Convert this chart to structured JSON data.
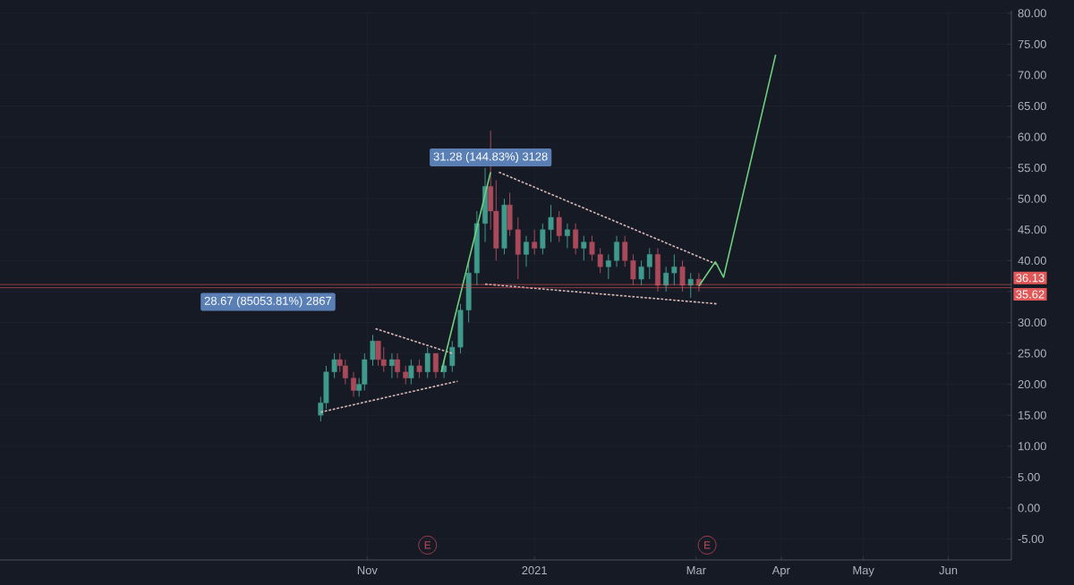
{
  "chart_data": {
    "type": "candlestick",
    "x": [
      "2020-10-15",
      "2020-10-17",
      "2020-10-20",
      "2020-10-22",
      "2020-10-24",
      "2020-10-27",
      "2020-10-29",
      "2020-10-31",
      "2020-11-03",
      "2020-11-05",
      "2020-11-07",
      "2020-11-10",
      "2020-11-12",
      "2020-11-15",
      "2020-11-17",
      "2020-11-20",
      "2020-11-23",
      "2020-11-26",
      "2020-11-29",
      "2020-12-02",
      "2020-12-05",
      "2020-12-08",
      "2020-12-11",
      "2020-12-14",
      "2020-12-16",
      "2020-12-18",
      "2020-12-21",
      "2020-12-23",
      "2020-12-26",
      "2020-12-29",
      "2021-01-01",
      "2021-01-04",
      "2021-01-07",
      "2021-01-10",
      "2021-01-13",
      "2021-01-16",
      "2021-01-19",
      "2021-01-22",
      "2021-01-25",
      "2021-01-28",
      "2021-01-31",
      "2021-02-03",
      "2021-02-06",
      "2021-02-09",
      "2021-02-12",
      "2021-02-15",
      "2021-02-18",
      "2021-02-21",
      "2021-02-24",
      "2021-02-27",
      "2021-03-02"
    ],
    "ohlc": [
      [
        15,
        18,
        14,
        17
      ],
      [
        17,
        23,
        16,
        22
      ],
      [
        22,
        25,
        21,
        24
      ],
      [
        24,
        25,
        22,
        23
      ],
      [
        23,
        24,
        20,
        21
      ],
      [
        21,
        22,
        18,
        19
      ],
      [
        19,
        21,
        18,
        20
      ],
      [
        20,
        25,
        19,
        24
      ],
      [
        24,
        28,
        23,
        27
      ],
      [
        27,
        27,
        23,
        24
      ],
      [
        24,
        26,
        22,
        23
      ],
      [
        23,
        25,
        21,
        24
      ],
      [
        24,
        25,
        21,
        22
      ],
      [
        22,
        23,
        20,
        21
      ],
      [
        21,
        24,
        20,
        23
      ],
      [
        23,
        24,
        21,
        22
      ],
      [
        22,
        26,
        21,
        25
      ],
      [
        25,
        25,
        21,
        22
      ],
      [
        22,
        24,
        21,
        23
      ],
      [
        23,
        27,
        22,
        26
      ],
      [
        26,
        33,
        25,
        32
      ],
      [
        32,
        40,
        30,
        38
      ],
      [
        38,
        48,
        36,
        46
      ],
      [
        46,
        55,
        43,
        52
      ],
      [
        52,
        61,
        45,
        48
      ],
      [
        48,
        53,
        40,
        42
      ],
      [
        42,
        50,
        41,
        49
      ],
      [
        49,
        51,
        44,
        45
      ],
      [
        45,
        47,
        37,
        41
      ],
      [
        41,
        44,
        39,
        43
      ],
      [
        43,
        45,
        41,
        42
      ],
      [
        42,
        46,
        41,
        45
      ],
      [
        45,
        49,
        43,
        47
      ],
      [
        47,
        48,
        43,
        44
      ],
      [
        44,
        46,
        42,
        45
      ],
      [
        45,
        46,
        41,
        42
      ],
      [
        42,
        44,
        40,
        43
      ],
      [
        43,
        44,
        40,
        41
      ],
      [
        41,
        42,
        38,
        39
      ],
      [
        39,
        41,
        37,
        40
      ],
      [
        40,
        44,
        39,
        43
      ],
      [
        43,
        44,
        39,
        40
      ],
      [
        40,
        41,
        36,
        37
      ],
      [
        37,
        40,
        36,
        39
      ],
      [
        39,
        42,
        37,
        41
      ],
      [
        41,
        42,
        35,
        36
      ],
      [
        36,
        39,
        35,
        38
      ],
      [
        38,
        41,
        36,
        39
      ],
      [
        39,
        40,
        35,
        36
      ],
      [
        36,
        38,
        34,
        37
      ],
      [
        37,
        38,
        35,
        36
      ]
    ],
    "colors": [
      "#3f9a8c",
      "#3f9a8c",
      "#3f9a8c",
      "#a84a5a",
      "#a84a5a",
      "#a84a5a",
      "#3f9a8c",
      "#3f9a8c",
      "#3f9a8c",
      "#a84a5a",
      "#a84a5a",
      "#3f9a8c",
      "#a84a5a",
      "#a84a5a",
      "#3f9a8c",
      "#a84a5a",
      "#3f9a8c",
      "#a84a5a",
      "#3f9a8c",
      "#3f9a8c",
      "#3f9a8c",
      "#3f9a8c",
      "#3f9a8c",
      "#3f9a8c",
      "#a84a5a",
      "#a84a5a",
      "#3f9a8c",
      "#a84a5a",
      "#a84a5a",
      "#3f9a8c",
      "#a84a5a",
      "#3f9a8c",
      "#3f9a8c",
      "#a84a5a",
      "#3f9a8c",
      "#a84a5a",
      "#3f9a8c",
      "#a84a5a",
      "#a84a5a",
      "#3f9a8c",
      "#3f9a8c",
      "#a84a5a",
      "#a84a5a",
      "#3f9a8c",
      "#3f9a8c",
      "#a84a5a",
      "#3f9a8c",
      "#3f9a8c",
      "#a84a5a",
      "#3f9a8c",
      "#a84a5a"
    ],
    "series": [
      {
        "type": "line",
        "x": [
          "2020-10-15",
          "2020-12-04"
        ],
        "values": [
          15.5,
          20.5
        ],
        "color": "#d8b8b8",
        "line_style": "dotted"
      },
      {
        "type": "line",
        "x": [
          "2020-11-04",
          "2020-12-02"
        ],
        "values": [
          29,
          25
        ],
        "color": "#d8b8b8",
        "line_style": "dotted"
      },
      {
        "type": "line",
        "x": [
          "2020-12-19",
          "2021-03-09"
        ],
        "values": [
          54.3,
          39.3
        ],
        "color": "#d8b8b8",
        "line_style": "dotted"
      },
      {
        "type": "line",
        "x": [
          "2020-12-14",
          "2021-03-09"
        ],
        "values": [
          36.2,
          33
        ],
        "color": "#d8b8b8",
        "line_style": "dotted"
      },
      {
        "type": "line",
        "x": [
          "2020-11-28",
          "2020-12-16"
        ],
        "values": [
          22,
          54.3
        ],
        "color": "#6fcf7f",
        "line_style": "solid"
      },
      {
        "type": "line",
        "x": [
          "2021-03-02",
          "2021-03-08",
          "2021-03-11",
          "2021-03-30"
        ],
        "values": [
          35.9,
          39.8,
          37.3,
          73.3
        ],
        "color": "#6fcf7f",
        "line_style": "solid"
      }
    ],
    "ref_lines": [
      {
        "axis": "y",
        "value": 36.13,
        "label": "36.13",
        "color": "#e05858"
      },
      {
        "axis": "y",
        "value": 35.62,
        "label": "35.62",
        "color": "#e05858"
      }
    ],
    "annotations": [
      "28.67 (85053.81%) 2867",
      {
        "text": "31.28 (144.83%) 3128",
        "x": "2020-12-16",
        "y": 54.3
      },
      {
        "text": "E",
        "x": "2020-11-23",
        "y": -6
      },
      {
        "text": "E",
        "x": "2021-03-05",
        "y": -6
      }
    ],
    "xlim": [
      "2020-06-20",
      "2021-06-24"
    ],
    "xticks": [
      {
        "value": "2020-11-01",
        "label": "Nov"
      },
      {
        "value": "2021-01-01",
        "label": "2021"
      },
      {
        "value": "2021-03-01",
        "label": "Mar"
      },
      {
        "value": "2021-04-01",
        "label": "Apr"
      },
      {
        "value": "2021-05-01",
        "label": "May"
      },
      {
        "value": "2021-06-01",
        "label": "Jun"
      }
    ],
    "ylim": [
      -8.4,
      80.4
    ],
    "yticks": [
      {
        "value": -5,
        "label": "-5.00"
      },
      {
        "value": 0,
        "label": "0.00"
      },
      {
        "value": 5,
        "label": "5.00"
      },
      {
        "value": 10,
        "label": "10.00"
      },
      {
        "value": 15,
        "label": "15.00"
      },
      {
        "value": 20,
        "label": "20.00"
      },
      {
        "value": 25,
        "label": "25.00"
      },
      {
        "value": 30,
        "label": "30.00"
      },
      {
        "value": 35,
        "label": null
      },
      {
        "value": 40,
        "label": "40.00"
      },
      {
        "value": 45,
        "label": "45.00"
      },
      {
        "value": 50,
        "label": "50.00"
      },
      {
        "value": 55,
        "label": "55.00"
      },
      {
        "value": 60,
        "label": "60.00"
      },
      {
        "value": 65,
        "label": "65.00"
      },
      {
        "value": 70,
        "label": "70.00"
      },
      {
        "value": 75,
        "label": "75.00"
      },
      {
        "value": 80,
        "label": "80.00"
      }
    ],
    "grid": true
  }
}
